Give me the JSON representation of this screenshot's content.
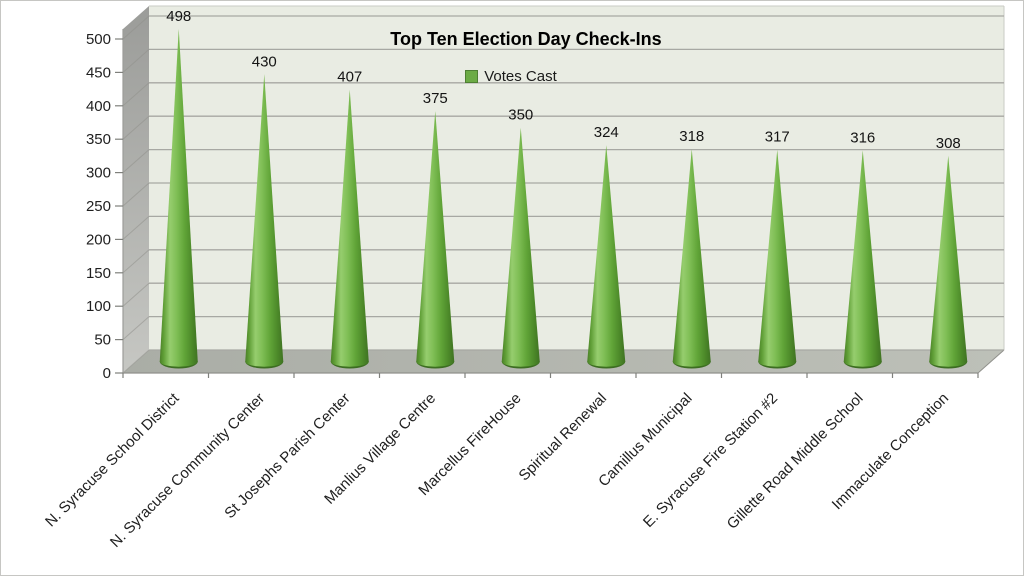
{
  "window": {
    "background": "#ffffff",
    "border_color": "#c6c6c3"
  },
  "chart_data": {
    "type": "bar",
    "bar_shape": "3d-cone",
    "title": "Top Ten Election Day Check-Ins",
    "legend": {
      "label": "Votes Cast",
      "position": "top-center",
      "swatch_color": "#6cab45",
      "swatch_border": "#4e7f33"
    },
    "categories": [
      "N. Syracuse School District",
      "N. Syracuse Community Center",
      "St Josephs Parish Center",
      "Manlius Village Centre",
      "Marcellus FireHouse",
      "Spiritual Renewal",
      "Camillus Municipal",
      "E. Syracuse Fire Station #2",
      "Gillette Road Middle School",
      "Immaculate Conception"
    ],
    "series": [
      {
        "name": "Votes Cast",
        "values": [
          498,
          430,
          407,
          375,
          350,
          324,
          318,
          317,
          316,
          308
        ]
      }
    ],
    "data_labels": [
      498,
      430,
      407,
      375,
      350,
      324,
      318,
      317,
      316,
      308
    ],
    "xlabel": "",
    "ylabel": "",
    "ylim": [
      0,
      500
    ],
    "ytick_step": 50,
    "yticks": [
      0,
      50,
      100,
      150,
      200,
      250,
      300,
      350,
      400,
      450,
      500
    ],
    "grid": true,
    "category_label_rotation_deg": -45,
    "colors": {
      "back_wall": "#e9ece3",
      "back_wall_headroom_line": "#c9cbc5",
      "gridline": "#a7a8a3",
      "side_wall_top": "#9b9c99",
      "side_wall_bottom": "#c6c7c3",
      "side_wall_gridline": "#8f908b",
      "wall_edge": "#9c9d99",
      "floor_left": "#aaada6",
      "floor_right": "#bdc0b8",
      "floor_front_edge": "#90918c",
      "tick": "#7f807c",
      "cone_rim": "#3c6d21",
      "cone_gradient_stops": [
        [
          "0",
          "#4a7f28"
        ],
        [
          "0.10",
          "#5f9e36"
        ],
        [
          "0.27",
          "#96cd6e"
        ],
        [
          "0.45",
          "#7fbe55"
        ],
        [
          "0.65",
          "#61a538"
        ],
        [
          "0.85",
          "#4c8929"
        ],
        [
          "1",
          "#3f7222"
        ]
      ]
    }
  }
}
